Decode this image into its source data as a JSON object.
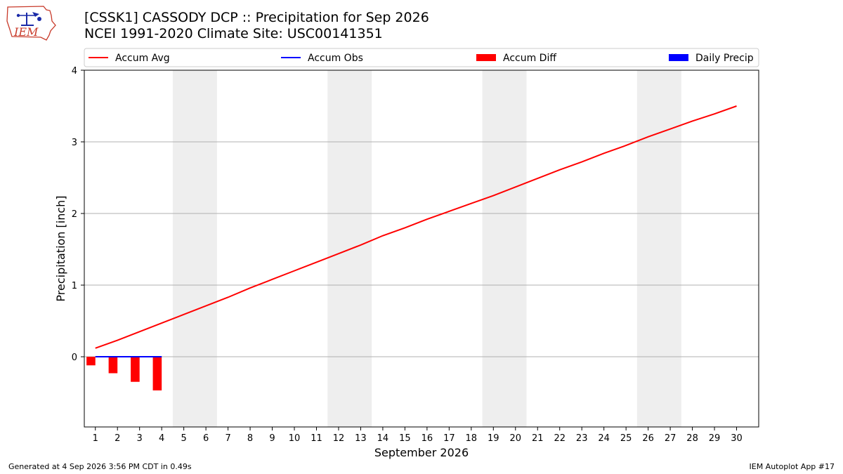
{
  "logo_text": "IEM",
  "title_line1": "[CSSK1] CASSODY DCP :: Precipitation for Sep 2026",
  "title_line2": "NCEI 1991-2020 Climate Site: USC00141351",
  "footer_left": "Generated at 4 Sep 2026 3:56 PM CDT in 0.49s",
  "footer_right": "IEM Autoplot App #17",
  "colors": {
    "accum_avg": "#ff0000",
    "accum_obs": "#0000ff",
    "accum_diff": "#ff0000",
    "daily_precip": "#0000ff",
    "weekend_band": "#eeeeee",
    "grid": "#b0b0b0"
  },
  "chart_data": {
    "type": "line",
    "xlabel": "September 2026",
    "ylabel": "Precipitation [inch]",
    "xlim": [
      0.5,
      31
    ],
    "ylim": [
      -0.98,
      4
    ],
    "yticks": [
      0,
      1,
      2,
      3,
      4
    ],
    "x": [
      1,
      2,
      3,
      4,
      5,
      6,
      7,
      8,
      9,
      10,
      11,
      12,
      13,
      14,
      15,
      16,
      17,
      18,
      19,
      20,
      21,
      22,
      23,
      24,
      25,
      26,
      27,
      28,
      29,
      30
    ],
    "x_tick_labels": [
      "1",
      "2",
      "3",
      "4",
      "5",
      "6",
      "7",
      "8",
      "9",
      "10",
      "11",
      "12",
      "13",
      "14",
      "15",
      "16",
      "17",
      "18",
      "19",
      "20",
      "21",
      "22",
      "23",
      "24",
      "25",
      "26",
      "27",
      "28",
      "29",
      "30"
    ],
    "weekend_days": [
      [
        5,
        6
      ],
      [
        12,
        13
      ],
      [
        19,
        20
      ],
      [
        26,
        27
      ]
    ],
    "legend_placement": "top, above plot",
    "grid": "horizontal",
    "series": [
      {
        "name": "Accum Avg",
        "kind": "line",
        "x": [
          1,
          2,
          3,
          4,
          5,
          6,
          7,
          8,
          9,
          10,
          11,
          12,
          13,
          14,
          15,
          16,
          17,
          18,
          19,
          20,
          21,
          22,
          23,
          24,
          25,
          26,
          27,
          28,
          29,
          30
        ],
        "values": [
          0.12,
          0.23,
          0.35,
          0.47,
          0.59,
          0.71,
          0.83,
          0.96,
          1.08,
          1.2,
          1.32,
          1.44,
          1.56,
          1.69,
          1.8,
          1.92,
          2.03,
          2.14,
          2.25,
          2.37,
          2.49,
          2.61,
          2.72,
          2.84,
          2.95,
          3.07,
          3.18,
          3.29,
          3.39,
          3.5
        ]
      },
      {
        "name": "Accum Obs",
        "kind": "line",
        "x": [
          1,
          2,
          3,
          4
        ],
        "values": [
          0,
          0,
          0,
          0
        ]
      },
      {
        "name": "Accum Diff",
        "kind": "bar",
        "x": [
          1,
          2,
          3,
          4
        ],
        "values": [
          -0.12,
          -0.23,
          -0.35,
          -0.47
        ]
      },
      {
        "name": "Daily Precip",
        "kind": "bar",
        "x": [
          1,
          2,
          3,
          4
        ],
        "values": [
          0,
          0,
          0,
          0
        ]
      }
    ]
  }
}
